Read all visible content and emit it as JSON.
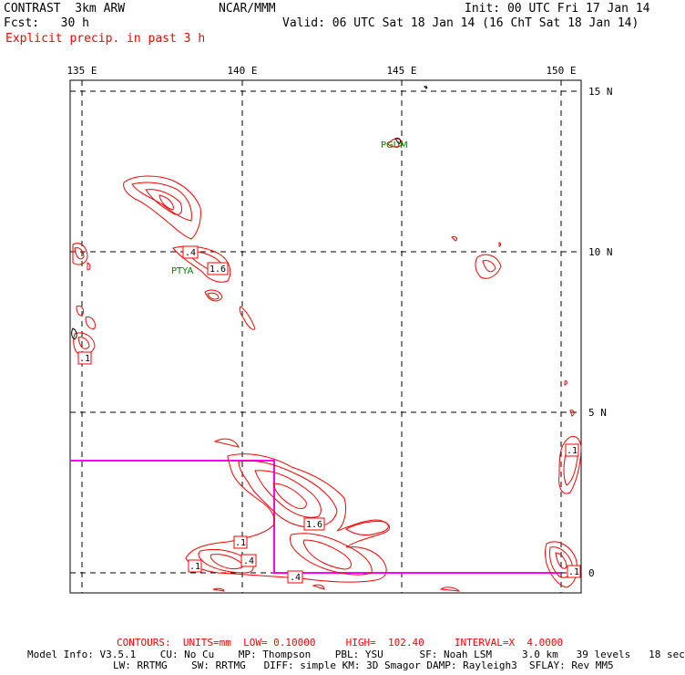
{
  "header": {
    "model": "CONTRAST  3km ARW",
    "org": "NCAR/MMM",
    "init": "Init: 00 UTC Fri 17 Jan 14",
    "fcst": "Fcst:   30 h",
    "valid": "Valid: 06 UTC Sat 18 Jan 14 (16 ChT Sat 18 Jan 14)",
    "field": "Explicit precip. in past 3 h"
  },
  "axes": {
    "lon_labels": [
      "135 E",
      "140 E",
      "145 E",
      "150 E"
    ],
    "lat_labels": [
      "15 N",
      "10 N",
      "5 N",
      "0"
    ]
  },
  "stations": [
    "PGUM",
    "PTYA"
  ],
  "contour_labels": [
    ".4",
    "1.6",
    ".1",
    ".1",
    "1.6",
    ".1",
    ".4",
    ".1",
    ".4",
    ".1"
  ],
  "footer": {
    "contours": "CONTOURS:  UNITS=mm  LOW= 0.10000     HIGH=  102.40     INTERVAL=X  4.0000",
    "model_info_1": "Model Info: V3.5.1    CU: No Cu    MP: Thompson    PBL: YSU      SF: Noah LSM     3.0 km   39 levels   18 sec",
    "model_info_2": "LW: RRTMG    SW: RRTMG   DIFF: simple KM: 3D Smagor DAMP: Rayleigh3  SFLAY: Rev MM5"
  },
  "colors": {
    "contour": "#ff0000",
    "station": "#008000",
    "domain_box": "#ff00ff",
    "header_field": "#ff0000"
  }
}
